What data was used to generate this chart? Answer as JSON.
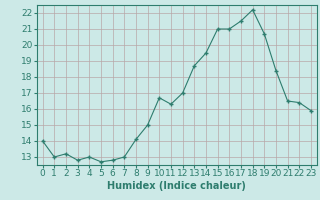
{
  "x": [
    0,
    1,
    2,
    3,
    4,
    5,
    6,
    7,
    8,
    9,
    10,
    11,
    12,
    13,
    14,
    15,
    16,
    17,
    18,
    19,
    20,
    21,
    22,
    23
  ],
  "y": [
    14,
    13,
    13.2,
    12.8,
    13,
    12.7,
    12.8,
    13,
    14.1,
    15,
    16.7,
    16.3,
    17,
    18.7,
    19.5,
    21,
    21,
    21.5,
    22.2,
    20.7,
    18.4,
    16.5,
    16.4,
    15.9
  ],
  "line_color": "#2e7d6e",
  "marker_color": "#2e7d6e",
  "bg_color": "#cce9e7",
  "grid_color": "#b8a8a8",
  "xlabel": "Humidex (Indice chaleur)",
  "xlabel_fontsize": 7,
  "tick_fontsize": 6.5,
  "ylim": [
    12.5,
    22.5
  ],
  "xlim": [
    -0.5,
    23.5
  ],
  "yticks": [
    13,
    14,
    15,
    16,
    17,
    18,
    19,
    20,
    21,
    22
  ],
  "xticks": [
    0,
    1,
    2,
    3,
    4,
    5,
    6,
    7,
    8,
    9,
    10,
    11,
    12,
    13,
    14,
    15,
    16,
    17,
    18,
    19,
    20,
    21,
    22,
    23
  ]
}
